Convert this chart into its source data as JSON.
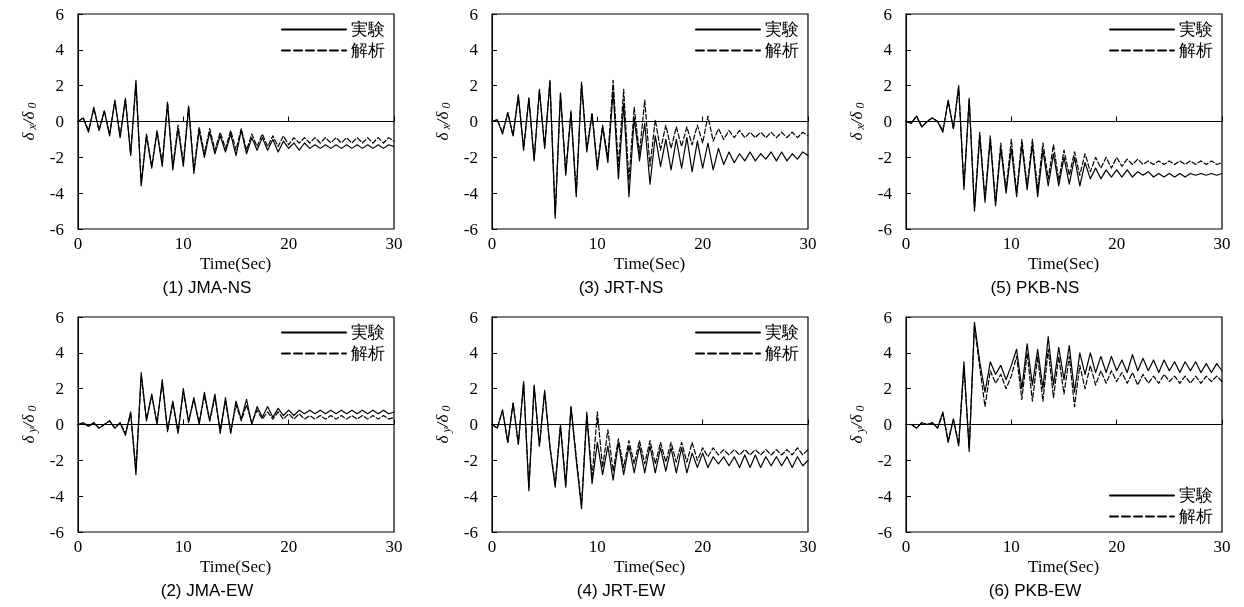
{
  "chart_data": [
    {
      "type": "line",
      "title": "(1) JMA-NS",
      "xlabel": "Time(Sec)",
      "ylabel": "δ$_{x}$/δ$_{0}$",
      "xlim": [
        0,
        30
      ],
      "ylim": [
        -6,
        6
      ],
      "xticks": [
        0,
        10,
        20,
        30
      ],
      "yticks": [
        -6,
        -4,
        -2,
        0,
        2,
        4,
        6
      ],
      "legend": "top right",
      "marker": "none",
      "x": [
        0,
        0.5,
        1,
        1.5,
        2,
        2.5,
        3,
        3.5,
        4,
        4.5,
        5,
        5.5,
        6,
        6.5,
        7,
        7.5,
        8,
        8.5,
        9,
        9.5,
        10,
        10.5,
        11,
        11.5,
        12,
        12.5,
        13,
        13.5,
        14,
        14.5,
        15,
        15.5,
        16,
        16.5,
        17,
        17.5,
        18,
        18.5,
        19,
        19.5,
        20,
        20.5,
        21,
        21.5,
        22,
        22.5,
        23,
        23.5,
        24,
        24.5,
        25,
        25.5,
        26,
        26.5,
        27,
        27.5,
        28,
        28.5,
        29,
        29.5,
        30
      ],
      "series": [
        {
          "name": "実験",
          "color": "#000000",
          "line_style": "solid",
          "values": [
            0,
            0.2,
            -0.6,
            0.8,
            -0.5,
            0.6,
            -0.8,
            1.2,
            -0.9,
            1.3,
            -1.9,
            2.3,
            -3.6,
            -0.8,
            -2.6,
            -0.6,
            -2.5,
            1.0,
            -2.7,
            -0.4,
            -2.5,
            0.8,
            -2.9,
            -0.5,
            -2.0,
            -0.6,
            -1.8,
            -0.8,
            -1.7,
            -0.7,
            -1.9,
            -0.5,
            -1.8,
            -0.9,
            -1.6,
            -0.9,
            -1.6,
            -1.0,
            -1.7,
            -1.1,
            -1.5,
            -1.2,
            -1.6,
            -1.2,
            -1.5,
            -1.3,
            -1.5,
            -1.3,
            -1.5,
            -1.3,
            -1.5,
            -1.3,
            -1.5,
            -1.3,
            -1.5,
            -1.3,
            -1.5,
            -1.3,
            -1.5,
            -1.3,
            -1.4
          ]
        },
        {
          "name": "解析",
          "color": "#000000",
          "line_style": "dashed",
          "values": [
            0,
            0.2,
            -0.5,
            0.7,
            -0.5,
            0.6,
            -0.7,
            1.1,
            -0.8,
            1.2,
            -1.8,
            2.1,
            -3.4,
            -0.7,
            -2.5,
            -0.5,
            -2.3,
            1.1,
            -2.5,
            -0.2,
            -2.3,
            0.9,
            -2.7,
            -0.3,
            -1.8,
            -0.4,
            -1.6,
            -0.6,
            -1.5,
            -0.5,
            -1.6,
            -0.4,
            -1.6,
            -0.7,
            -1.4,
            -0.7,
            -1.4,
            -0.8,
            -1.4,
            -0.8,
            -1.3,
            -0.9,
            -1.2,
            -0.9,
            -1.2,
            -0.9,
            -1.2,
            -0.9,
            -1.2,
            -0.9,
            -1.2,
            -0.9,
            -1.2,
            -0.9,
            -1.2,
            -0.9,
            -1.2,
            -0.9,
            -1.2,
            -0.9,
            -1.1
          ]
        }
      ]
    },
    {
      "type": "line",
      "title": "(3) JRT-NS",
      "xlabel": "Time(Sec)",
      "ylabel": "δ$_{x}$/δ$_{0}$",
      "xlim": [
        0,
        30
      ],
      "ylim": [
        -6,
        6
      ],
      "xticks": [
        0,
        10,
        20,
        30
      ],
      "yticks": [
        -6,
        -4,
        -2,
        0,
        2,
        4,
        6
      ],
      "legend": "top right",
      "marker": "none",
      "x": [
        0,
        0.5,
        1,
        1.5,
        2,
        2.5,
        3,
        3.5,
        4,
        4.5,
        5,
        5.5,
        6,
        6.5,
        7,
        7.5,
        8,
        8.5,
        9,
        9.5,
        10,
        10.5,
        11,
        11.5,
        12,
        12.5,
        13,
        13.5,
        14,
        14.5,
        15,
        15.5,
        16,
        16.5,
        17,
        17.5,
        18,
        18.5,
        19,
        19.5,
        20,
        20.5,
        21,
        21.5,
        22,
        22.5,
        23,
        23.5,
        24,
        24.5,
        25,
        25.5,
        26,
        26.5,
        27,
        27.5,
        28,
        28.5,
        29,
        29.5,
        30
      ],
      "series": [
        {
          "name": "実験",
          "color": "#000000",
          "line_style": "solid",
          "values": [
            0,
            0.1,
            -0.7,
            0.5,
            -0.8,
            1.5,
            -1.6,
            1.3,
            -2.2,
            1.8,
            -1.5,
            2.3,
            -5.4,
            1.6,
            -3.0,
            0.5,
            -4.2,
            2.1,
            -1.7,
            0.4,
            -2.7,
            -0.3,
            -2.3,
            1.7,
            -3.2,
            1.0,
            -4.2,
            0.2,
            -2.2,
            -0.1,
            -3.5,
            -0.8,
            -2.5,
            -1.0,
            -2.7,
            -1.0,
            -2.6,
            -0.9,
            -2.8,
            -1.1,
            -2.6,
            -1.2,
            -2.7,
            -1.5,
            -2.4,
            -1.7,
            -2.3,
            -1.8,
            -2.2,
            -1.7,
            -2.2,
            -1.8,
            -2.1,
            -1.7,
            -2.2,
            -1.7,
            -2.2,
            -1.8,
            -2.1,
            -1.7,
            -1.9
          ]
        },
        {
          "name": "解析",
          "color": "#000000",
          "line_style": "dashed",
          "values": [
            0,
            0.1,
            -0.6,
            0.5,
            -0.8,
            1.4,
            -1.5,
            1.3,
            -2.1,
            1.7,
            -1.4,
            2.2,
            -5.2,
            1.5,
            -2.8,
            0.6,
            -4.0,
            2.2,
            -1.5,
            0.5,
            -2.5,
            -0.2,
            -2.0,
            2.3,
            -2.5,
            1.8,
            -3.3,
            0.8,
            -1.8,
            1.2,
            -2.5,
            0.1,
            -1.6,
            -0.2,
            -1.5,
            -0.3,
            -1.4,
            -0.3,
            -1.3,
            -0.2,
            -1.2,
            0.3,
            -1.1,
            -0.4,
            -1.0,
            -0.5,
            -0.9,
            -0.5,
            -0.9,
            -0.6,
            -0.9,
            -0.6,
            -0.9,
            -0.6,
            -0.9,
            -0.6,
            -0.9,
            -0.6,
            -0.9,
            -0.6,
            -0.8
          ]
        }
      ]
    },
    {
      "type": "line",
      "title": "(5) PKB-NS",
      "xlabel": "Time(Sec)",
      "ylabel": "δ$_{x}$/δ$_{0}$",
      "xlim": [
        0,
        30
      ],
      "ylim": [
        -6,
        6
      ],
      "xticks": [
        0,
        10,
        20,
        30
      ],
      "yticks": [
        -6,
        -4,
        -2,
        0,
        2,
        4,
        6
      ],
      "legend": "top right",
      "marker": "none",
      "x": [
        0,
        0.5,
        1,
        1.5,
        2,
        2.5,
        3,
        3.5,
        4,
        4.5,
        5,
        5.5,
        6,
        6.5,
        7,
        7.5,
        8,
        8.5,
        9,
        9.5,
        10,
        10.5,
        11,
        11.5,
        12,
        12.5,
        13,
        13.5,
        14,
        14.5,
        15,
        15.5,
        16,
        16.5,
        17,
        17.5,
        18,
        18.5,
        19,
        19.5,
        20,
        20.5,
        21,
        21.5,
        22,
        22.5,
        23,
        23.5,
        24,
        24.5,
        25,
        25.5,
        26,
        26.5,
        27,
        27.5,
        28,
        28.5,
        29,
        29.5,
        30
      ],
      "series": [
        {
          "name": "実験",
          "color": "#000000",
          "line_style": "solid",
          "values": [
            0,
            -0.1,
            0.3,
            -0.3,
            0.0,
            0.2,
            0.0,
            -0.6,
            1.2,
            -0.4,
            2.0,
            -3.8,
            1.3,
            -5.0,
            -0.8,
            -4.5,
            -1.0,
            -4.7,
            -1.5,
            -4.0,
            -1.5,
            -4.2,
            -1.3,
            -3.8,
            -1.3,
            -4.2,
            -1.6,
            -3.6,
            -1.8,
            -3.6,
            -2.0,
            -3.5,
            -2.0,
            -3.6,
            -2.3,
            -3.2,
            -2.6,
            -3.2,
            -2.7,
            -3.1,
            -2.7,
            -3.1,
            -2.7,
            -3.1,
            -2.8,
            -3.0,
            -2.8,
            -3.1,
            -2.9,
            -3.1,
            -2.9,
            -3.1,
            -2.9,
            -3.1,
            -2.9,
            -3.0,
            -2.9,
            -3.0,
            -2.9,
            -3.0,
            -2.9
          ]
        },
        {
          "name": "解析",
          "color": "#000000",
          "line_style": "dashed",
          "values": [
            0,
            -0.1,
            0.3,
            -0.3,
            0.0,
            0.2,
            0.0,
            -0.5,
            1.1,
            -0.4,
            1.9,
            -3.6,
            1.2,
            -4.8,
            -0.6,
            -4.3,
            -0.8,
            -4.5,
            -1.2,
            -3.8,
            -1.0,
            -4.0,
            -1.0,
            -3.6,
            -1.0,
            -3.8,
            -1.2,
            -3.2,
            -1.3,
            -3.3,
            -1.6,
            -3.0,
            -1.7,
            -3.0,
            -1.8,
            -2.8,
            -2.0,
            -2.6,
            -2.0,
            -2.6,
            -2.0,
            -2.5,
            -2.1,
            -2.4,
            -2.1,
            -2.4,
            -2.2,
            -2.4,
            -2.2,
            -2.4,
            -2.2,
            -2.4,
            -2.2,
            -2.4,
            -2.2,
            -2.4,
            -2.2,
            -2.4,
            -2.2,
            -2.4,
            -2.3
          ]
        }
      ]
    },
    {
      "type": "line",
      "title": "(2) JMA-EW",
      "xlabel": "Time(Sec)",
      "ylabel": "δ$_{y}$/δ$_{0}$",
      "xlim": [
        0,
        30
      ],
      "ylim": [
        -6,
        6
      ],
      "xticks": [
        0,
        10,
        20,
        30
      ],
      "yticks": [
        -6,
        -4,
        -2,
        0,
        2,
        4,
        6
      ],
      "legend": "top right",
      "marker": "none",
      "x": [
        0,
        0.5,
        1,
        1.5,
        2,
        2.5,
        3,
        3.5,
        4,
        4.5,
        5,
        5.5,
        6,
        6.5,
        7,
        7.5,
        8,
        8.5,
        9,
        9.5,
        10,
        10.5,
        11,
        11.5,
        12,
        12.5,
        13,
        13.5,
        14,
        14.5,
        15,
        15.5,
        16,
        16.5,
        17,
        17.5,
        18,
        18.5,
        19,
        19.5,
        20,
        20.5,
        21,
        21.5,
        22,
        22.5,
        23,
        23.5,
        24,
        24.5,
        25,
        25.5,
        26,
        26.5,
        27,
        27.5,
        28,
        28.5,
        29,
        29.5,
        30
      ],
      "series": [
        {
          "name": "実験",
          "color": "#000000",
          "line_style": "solid",
          "values": [
            0,
            0.1,
            -0.1,
            0.1,
            -0.2,
            0.0,
            0.2,
            -0.2,
            0.1,
            -0.6,
            0.7,
            -2.8,
            2.9,
            0.2,
            1.7,
            0.0,
            2.5,
            -0.4,
            1.3,
            -0.5,
            2.0,
            0.1,
            1.5,
            0.0,
            1.8,
            0.2,
            1.7,
            -0.5,
            1.5,
            -0.5,
            1.3,
            0.3,
            1.4,
            0.0,
            1.0,
            0.4,
            1.0,
            0.4,
            0.9,
            0.5,
            0.8,
            0.5,
            0.8,
            0.6,
            0.8,
            0.6,
            0.8,
            0.6,
            0.8,
            0.6,
            0.8,
            0.6,
            0.8,
            0.6,
            0.8,
            0.6,
            0.8,
            0.6,
            0.8,
            0.6,
            0.7
          ]
        },
        {
          "name": "解析",
          "color": "#000000",
          "line_style": "dashed",
          "values": [
            0,
            0.1,
            -0.1,
            0.1,
            -0.2,
            0.0,
            0.2,
            -0.2,
            0.1,
            -0.5,
            0.6,
            -2.5,
            2.7,
            0.3,
            1.6,
            0.1,
            2.3,
            -0.3,
            1.2,
            -0.4,
            1.8,
            0.2,
            1.4,
            0.1,
            1.6,
            0.2,
            1.5,
            -0.3,
            1.3,
            -0.4,
            1.1,
            0.2,
            1.1,
            0.1,
            0.8,
            0.3,
            0.7,
            0.3,
            0.7,
            0.3,
            0.6,
            0.3,
            0.6,
            0.3,
            0.5,
            0.3,
            0.5,
            0.3,
            0.5,
            0.3,
            0.5,
            0.3,
            0.5,
            0.3,
            0.5,
            0.3,
            0.5,
            0.3,
            0.5,
            0.3,
            0.4
          ]
        }
      ]
    },
    {
      "type": "line",
      "title": "(4) JRT-EW",
      "xlabel": "Time(Sec)",
      "ylabel": "δ$_{y}$/δ$_{0}$",
      "xlim": [
        0,
        30
      ],
      "ylim": [
        -6,
        6
      ],
      "xticks": [
        0,
        10,
        20,
        30
      ],
      "yticks": [
        -6,
        -4,
        -2,
        0,
        2,
        4,
        6
      ],
      "legend": "top right",
      "marker": "none",
      "x": [
        0,
        0.5,
        1,
        1.5,
        2,
        2.5,
        3,
        3.5,
        4,
        4.5,
        5,
        5.5,
        6,
        6.5,
        7,
        7.5,
        8,
        8.5,
        9,
        9.5,
        10,
        10.5,
        11,
        11.5,
        12,
        12.5,
        13,
        13.5,
        14,
        14.5,
        15,
        15.5,
        16,
        16.5,
        17,
        17.5,
        18,
        18.5,
        19,
        19.5,
        20,
        20.5,
        21,
        21.5,
        22,
        22.5,
        23,
        23.5,
        24,
        24.5,
        25,
        25.5,
        26,
        26.5,
        27,
        27.5,
        28,
        28.5,
        29,
        29.5,
        30
      ],
      "series": [
        {
          "name": "実験",
          "color": "#000000",
          "line_style": "solid",
          "values": [
            0,
            -0.2,
            0.8,
            -1.0,
            1.2,
            -1.1,
            2.4,
            -3.7,
            2.2,
            -1.2,
            1.9,
            -1.3,
            -3.5,
            -0.1,
            -3.5,
            1.0,
            -2.0,
            -4.7,
            0.5,
            -3.3,
            -1.0,
            -2.8,
            -1.2,
            -3.1,
            -1.0,
            -2.8,
            -1.2,
            -2.7,
            -1.2,
            -2.7,
            -1.2,
            -2.7,
            -1.3,
            -2.6,
            -1.3,
            -2.7,
            -1.3,
            -2.7,
            -1.6,
            -2.4,
            -1.6,
            -2.4,
            -1.8,
            -2.2,
            -1.8,
            -2.3,
            -1.8,
            -2.4,
            -1.7,
            -2.4,
            -1.7,
            -2.4,
            -1.8,
            -2.3,
            -1.8,
            -2.3,
            -1.8,
            -2.4,
            -1.8,
            -2.3,
            -2.0
          ]
        },
        {
          "name": "解析",
          "color": "#000000",
          "line_style": "dashed",
          "values": [
            0,
            -0.2,
            0.8,
            -1.0,
            1.2,
            -1.1,
            2.3,
            -3.5,
            2.1,
            -1.2,
            1.8,
            -1.2,
            -3.3,
            0.0,
            -3.3,
            1.0,
            -1.8,
            -4.5,
            0.7,
            -3.0,
            0.7,
            -2.4,
            -0.3,
            -2.6,
            -0.8,
            -2.4,
            -0.9,
            -2.2,
            -0.9,
            -2.2,
            -0.9,
            -2.2,
            -1.0,
            -2.1,
            -1.0,
            -2.1,
            -1.0,
            -2.1,
            -1.0,
            -2.0,
            -1.3,
            -1.8,
            -1.3,
            -1.7,
            -1.4,
            -1.7,
            -1.4,
            -1.7,
            -1.4,
            -1.7,
            -1.4,
            -1.7,
            -1.4,
            -1.7,
            -1.4,
            -1.7,
            -1.4,
            -1.7,
            -1.3,
            -1.7,
            -1.4
          ]
        }
      ]
    },
    {
      "type": "line",
      "title": "(6) PKB-EW",
      "xlabel": "Time(Sec)",
      "ylabel": "δ$_{y}$/δ$_{0}$",
      "xlim": [
        0,
        30
      ],
      "ylim": [
        -6,
        6
      ],
      "xticks": [
        0,
        10,
        20,
        30
      ],
      "yticks": [
        -6,
        -4,
        -2,
        0,
        2,
        4,
        6
      ],
      "legend": "bottom right",
      "marker": "none",
      "x": [
        0,
        0.5,
        1,
        1.5,
        2,
        2.5,
        3,
        3.5,
        4,
        4.5,
        5,
        5.5,
        6,
        6.5,
        7,
        7.5,
        8,
        8.5,
        9,
        9.5,
        10,
        10.5,
        11,
        11.5,
        12,
        12.5,
        13,
        13.5,
        14,
        14.5,
        15,
        15.5,
        16,
        16.5,
        17,
        17.5,
        18,
        18.5,
        19,
        19.5,
        20,
        20.5,
        21,
        21.5,
        22,
        22.5,
        23,
        23.5,
        24,
        24.5,
        25,
        25.5,
        26,
        26.5,
        27,
        27.5,
        28,
        28.5,
        29,
        29.5,
        30
      ],
      "series": [
        {
          "name": "実験",
          "color": "#000000",
          "line_style": "solid",
          "values": [
            0,
            0.0,
            -0.2,
            0.1,
            0.0,
            0.1,
            -0.2,
            0.7,
            -1.0,
            0.3,
            -1.2,
            3.5,
            -1.5,
            5.7,
            3.5,
            1.8,
            3.5,
            2.8,
            3.3,
            2.5,
            3.3,
            4.2,
            2.0,
            4.5,
            2.2,
            4.2,
            2.0,
            4.9,
            2.2,
            4.3,
            2.5,
            4.4,
            1.8,
            4.0,
            2.8,
            4.0,
            2.9,
            3.8,
            2.9,
            3.8,
            3.0,
            3.6,
            2.9,
            3.9,
            3.0,
            3.7,
            3.0,
            3.6,
            2.9,
            3.6,
            3.0,
            3.5,
            2.9,
            3.5,
            3.0,
            3.5,
            2.9,
            3.4,
            2.9,
            3.4,
            3.0
          ]
        },
        {
          "name": "解析",
          "color": "#000000",
          "line_style": "dashed",
          "values": [
            0,
            0.0,
            -0.2,
            0.1,
            0.0,
            0.1,
            -0.2,
            0.6,
            -0.9,
            0.3,
            -1.1,
            3.2,
            -1.3,
            5.5,
            3.2,
            1.0,
            3.0,
            2.3,
            2.8,
            2.0,
            2.7,
            3.8,
            1.4,
            4.0,
            1.3,
            3.8,
            1.3,
            4.2,
            1.5,
            3.8,
            1.7,
            3.8,
            1.0,
            3.3,
            2.0,
            3.3,
            2.2,
            3.0,
            2.3,
            3.0,
            2.4,
            2.9,
            2.3,
            2.9,
            2.2,
            2.8,
            2.3,
            2.7,
            2.3,
            2.8,
            2.4,
            2.7,
            2.3,
            2.7,
            2.3,
            2.7,
            2.3,
            2.7,
            2.4,
            2.7,
            2.4
          ]
        }
      ]
    }
  ]
}
